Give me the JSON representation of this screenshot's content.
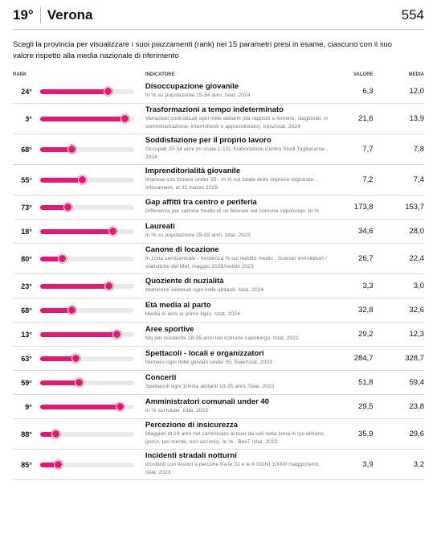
{
  "header": {
    "rank": "19°",
    "title": "Verona",
    "score": "554"
  },
  "description": "Scegli la provincia per visualizzare i suoi piazzamenti (rank) nei 15 parametri presi in esame, ciascuno con il suo valore rispetto alla media nazionale di riferimento",
  "table": {
    "columns": [
      "RANK",
      "INDICATORE",
      "VALORE",
      "MEDIA"
    ],
    "rows": [
      {
        "rank": {
          "value": 24,
          "label": "24°"
        },
        "title": "Disoccupazione giovanile",
        "note": "In % su popolazione 15-34 anni. Istat, 2024",
        "valore": "6,3",
        "media": "12,0"
      },
      {
        "rank": {
          "value": 3,
          "label": "3°"
        },
        "title": "Trasformazioni a tempo indeterminato",
        "note": "Variazioni contrattuali ogni mille abitanti (da rapporti a termine, stagionali, in somministrazione, intermittenti e apprendistato). Inps/Istat, 2024",
        "valore": "21,6",
        "media": "13,9"
      },
      {
        "rank": {
          "value": 68,
          "label": "68°"
        },
        "title": "Soddisfazione per il proprio lavoro",
        "note": "Occupati 20-34 anni (in scala 1-10). Elaborazioni Centro Studi Tagliacarne , 2024",
        "valore": "7,7",
        "media": "7,8"
      },
      {
        "rank": {
          "value": 55,
          "label": "55°"
        },
        "title": "Imprenditorialità giovanile",
        "note": "Imprese con titolare under 35 - In % sul totale delle imprese registrate . Infocamere, al 31 marzo 2025",
        "valore": "7,2",
        "media": "7,4"
      },
      {
        "rank": {
          "value": 73,
          "label": "73°"
        },
        "title": "Gap affitti tra centro e periferia",
        "note": "Differenza per canone medio di un bilocale nel comune capoluogo. In %",
        "valore": "173,8",
        "media": "153,7"
      },
      {
        "rank": {
          "value": 18,
          "label": "18°"
        },
        "title": "Laureati",
        "note": "In % su popolazione 25-39 anni. Istat, 2023",
        "valore": "34,6",
        "media": "28,0"
      },
      {
        "rank": {
          "value": 80,
          "label": "80°"
        },
        "title": "Canone di locazione",
        "note": "In zona semicentrale - incidenza % sul reddito medio . Scenari immobiliari / statistiche del Mef, maggio 2025/redditi 2023",
        "valore": "26,7",
        "media": "22,4"
      },
      {
        "rank": {
          "value": 23,
          "label": "23°"
        },
        "title": "Quoziente di nuzialità",
        "note": "Matrimoni celebrati ogni mille abitanti. Istat, 2024",
        "valore": "3,3",
        "media": "3,0"
      },
      {
        "rank": {
          "value": 68,
          "label": "68°"
        },
        "title": "Età media al parto",
        "note": "Media in anni al primo figlio. Istat, 2024",
        "valore": "32,8",
        "media": "32,6"
      },
      {
        "rank": {
          "value": 13,
          "label": "13°"
        },
        "title": "Aree sportive",
        "note": "Mq per residente 18-35 anni nel comune capoluogo. Istat, 2022",
        "valore": "29,2",
        "media": "12,3"
      },
      {
        "rank": {
          "value": 63,
          "label": "63°"
        },
        "title": "Spettacoli - locali e organizzatori",
        "note": "Numero ogni mille giovani under 35. Siae/Istat, 2023",
        "valore": "284,7",
        "media": "328,7"
      },
      {
        "rank": {
          "value": 59,
          "label": "59°"
        },
        "title": "Concerti",
        "note": "Spettacoli ogni 10mila abitanti 18-35 anni. Siae, 2022",
        "valore": "51,8",
        "media": "59,4"
      },
      {
        "rank": {
          "value": 9,
          "label": "9°"
        },
        "title": "Amministratori comunali under 40",
        "note": "In % sul totale. Istat, 2023",
        "valore": "29,5",
        "media": "23,8"
      },
      {
        "rank": {
          "value": 88,
          "label": "88°"
        },
        "title": "Percezione di insicurezza",
        "note": "Maggiori di 14 anni nel camminare al buio da soli nella zona in cui abitano (poco, per niente, non escono). In % . BesT Istat, 2022",
        "valore": "35,9",
        "media": "29,6"
      },
      {
        "rank": {
          "value": 85,
          "label": "85°"
        },
        "title": "Incidenti stradali notturni",
        "note": "Incidenti con lesioni a persone tra le 22 e le 6 OGNI 10000 maggiorenni. Istat, 2023",
        "valore": "3,9",
        "media": "3,2"
      }
    ]
  }
}
